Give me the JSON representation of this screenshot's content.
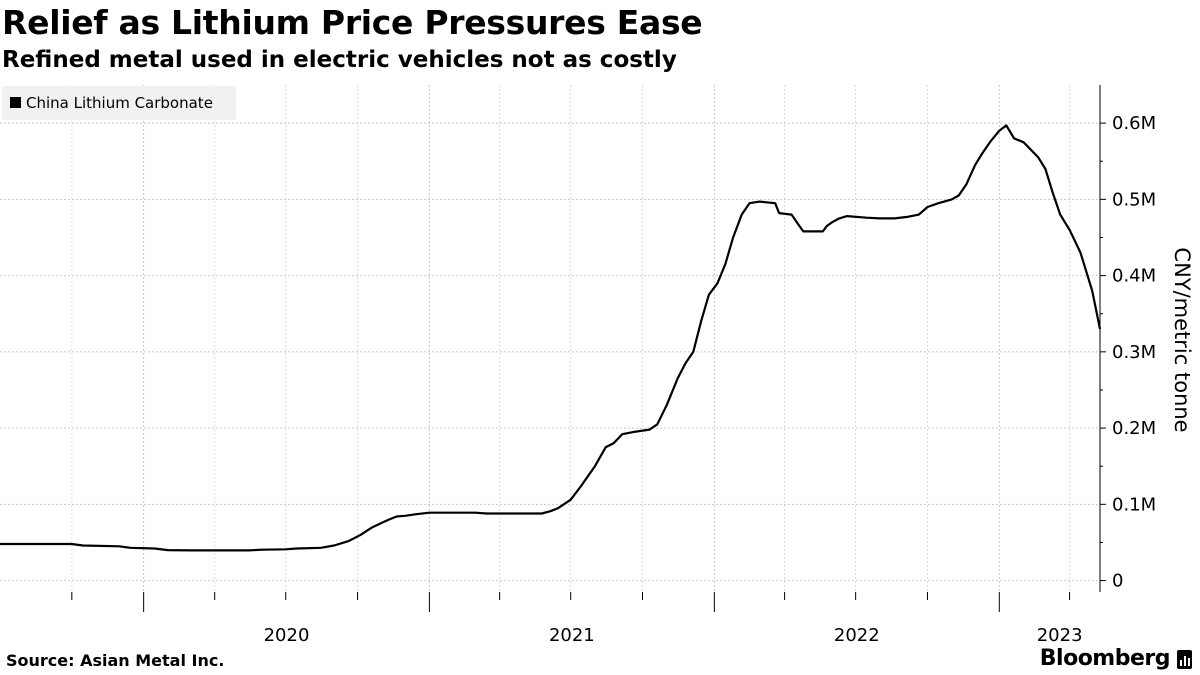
{
  "header": {
    "title": "Relief as Lithium Price Pressures Ease",
    "subtitle": "Refined metal used in electric vehicles not as costly"
  },
  "footer": {
    "source": "Source: Asian Metal Inc.",
    "brand": "Bloomberg"
  },
  "chart_data": {
    "type": "line",
    "title": "Relief as Lithium Price Pressures Ease",
    "subtitle": "Refined metal used in electric vehicles not as costly",
    "ylabel": "CNY/metric tonne",
    "xlabel": "",
    "legend": {
      "position": "top-left",
      "entries": [
        "China Lithium Carbonate"
      ]
    },
    "grid": true,
    "y_axis": {
      "position": "right",
      "range": [
        -15000,
        650000
      ],
      "ticks": [
        0,
        100000,
        200000,
        300000,
        400000,
        500000,
        600000
      ],
      "tick_labels": [
        "0",
        "0.1M",
        "0.2M",
        "0.3M",
        "0.4M",
        "0.5M",
        "0.6M"
      ]
    },
    "x_axis": {
      "range": [
        "2019-07-01",
        "2023-05-10"
      ],
      "labels": [
        {
          "date": "2020-01-01",
          "text": "2020"
        },
        {
          "date": "2021-01-01",
          "text": "2021"
        },
        {
          "date": "2022-01-01",
          "text": "2022"
        },
        {
          "date": "2023-01-01",
          "text": "2023"
        }
      ],
      "quarter_ticks": [
        "2019-10-01",
        "2020-04-01",
        "2020-07-01",
        "2020-10-01",
        "2021-04-01",
        "2021-07-01",
        "2021-10-01",
        "2022-04-01",
        "2022-07-01",
        "2022-10-01",
        "2023-04-01"
      ]
    },
    "series": [
      {
        "name": "China Lithium Carbonate",
        "color": "#000000",
        "points": [
          [
            "2019-07-01",
            48000
          ],
          [
            "2019-10-01",
            48000
          ],
          [
            "2019-10-15",
            46000
          ],
          [
            "2019-12-01",
            45000
          ],
          [
            "2019-12-15",
            43000
          ],
          [
            "2020-01-15",
            42000
          ],
          [
            "2020-02-01",
            40000
          ],
          [
            "2020-03-01",
            39500
          ],
          [
            "2020-05-15",
            39500
          ],
          [
            "2020-06-01",
            40500
          ],
          [
            "2020-07-01",
            41000
          ],
          [
            "2020-07-15",
            42000
          ],
          [
            "2020-08-15",
            43000
          ],
          [
            "2020-09-01",
            46000
          ],
          [
            "2020-09-20",
            52000
          ],
          [
            "2020-10-05",
            60000
          ],
          [
            "2020-10-20",
            70000
          ],
          [
            "2020-11-10",
            80000
          ],
          [
            "2020-11-20",
            84000
          ],
          [
            "2020-12-01",
            85000
          ],
          [
            "2020-12-15",
            87000
          ],
          [
            "2021-01-01",
            89000
          ],
          [
            "2021-03-01",
            89000
          ],
          [
            "2021-03-15",
            88000
          ],
          [
            "2021-05-25",
            88000
          ],
          [
            "2021-06-05",
            91000
          ],
          [
            "2021-06-15",
            95000
          ],
          [
            "2021-07-01",
            106000
          ],
          [
            "2021-07-15",
            125000
          ],
          [
            "2021-08-01",
            150000
          ],
          [
            "2021-08-15",
            175000
          ],
          [
            "2021-08-25",
            180000
          ],
          [
            "2021-09-05",
            192000
          ],
          [
            "2021-09-20",
            195000
          ],
          [
            "2021-10-10",
            198000
          ],
          [
            "2021-10-20",
            205000
          ],
          [
            "2021-11-01",
            230000
          ],
          [
            "2021-11-15",
            265000
          ],
          [
            "2021-11-25",
            285000
          ],
          [
            "2021-12-05",
            300000
          ],
          [
            "2021-12-15",
            340000
          ],
          [
            "2021-12-25",
            375000
          ],
          [
            "2022-01-05",
            390000
          ],
          [
            "2022-01-15",
            415000
          ],
          [
            "2022-01-25",
            450000
          ],
          [
            "2022-02-05",
            480000
          ],
          [
            "2022-02-15",
            495000
          ],
          [
            "2022-02-28",
            497000
          ],
          [
            "2022-03-20",
            495000
          ],
          [
            "2022-03-25",
            482000
          ],
          [
            "2022-04-10",
            480000
          ],
          [
            "2022-04-20",
            465000
          ],
          [
            "2022-04-25",
            458000
          ],
          [
            "2022-05-20",
            458000
          ],
          [
            "2022-05-25",
            465000
          ],
          [
            "2022-06-01",
            470000
          ],
          [
            "2022-06-10",
            475000
          ],
          [
            "2022-06-20",
            478000
          ],
          [
            "2022-07-15",
            476000
          ],
          [
            "2022-08-01",
            475000
          ],
          [
            "2022-08-20",
            475000
          ],
          [
            "2022-09-05",
            477000
          ],
          [
            "2022-09-20",
            480000
          ],
          [
            "2022-10-01",
            490000
          ],
          [
            "2022-10-15",
            495000
          ],
          [
            "2022-11-01",
            500000
          ],
          [
            "2022-11-10",
            505000
          ],
          [
            "2022-11-20",
            520000
          ],
          [
            "2022-12-01",
            545000
          ],
          [
            "2022-12-10",
            560000
          ],
          [
            "2022-12-20",
            575000
          ],
          [
            "2023-01-01",
            590000
          ],
          [
            "2023-01-10",
            597000
          ],
          [
            "2023-01-20",
            580000
          ],
          [
            "2023-02-01",
            575000
          ],
          [
            "2023-02-20",
            555000
          ],
          [
            "2023-03-01",
            540000
          ],
          [
            "2023-03-10",
            510000
          ],
          [
            "2023-03-20",
            480000
          ],
          [
            "2023-04-01",
            460000
          ],
          [
            "2023-04-15",
            430000
          ],
          [
            "2023-04-30",
            380000
          ],
          [
            "2023-05-10",
            330000
          ]
        ]
      }
    ]
  }
}
